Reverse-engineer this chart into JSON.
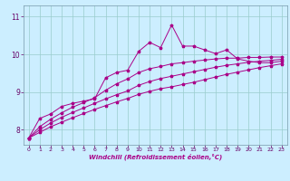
{
  "xlabel": "Windchill (Refroidissement éolien,°C)",
  "background_color": "#cceeff",
  "line_color": "#aa0088",
  "grid_color": "#99cccc",
  "xlim": [
    -0.5,
    23.5
  ],
  "ylim": [
    7.6,
    11.3
  ],
  "yticks": [
    8,
    9,
    10,
    11
  ],
  "xticks": [
    0,
    1,
    2,
    3,
    4,
    5,
    6,
    7,
    8,
    9,
    10,
    11,
    12,
    13,
    14,
    15,
    16,
    17,
    18,
    19,
    20,
    21,
    22,
    23
  ],
  "series": [
    [
      7.78,
      8.3,
      8.42,
      8.62,
      8.7,
      8.76,
      8.82,
      9.38,
      9.52,
      9.58,
      10.08,
      10.32,
      10.18,
      10.78,
      10.22,
      10.22,
      10.12,
      10.02,
      10.12,
      9.88,
      9.82,
      9.78,
      9.78,
      9.82
    ],
    [
      7.78,
      8.08,
      8.28,
      8.45,
      8.6,
      8.72,
      8.85,
      9.05,
      9.22,
      9.35,
      9.52,
      9.62,
      9.68,
      9.75,
      9.78,
      9.82,
      9.85,
      9.88,
      9.9,
      9.9,
      9.92,
      9.92,
      9.93,
      9.93
    ],
    [
      7.78,
      8.0,
      8.18,
      8.33,
      8.46,
      8.58,
      8.7,
      8.82,
      8.93,
      9.03,
      9.18,
      9.28,
      9.36,
      9.42,
      9.48,
      9.54,
      9.6,
      9.66,
      9.71,
      9.75,
      9.79,
      9.82,
      9.84,
      9.87
    ],
    [
      7.78,
      7.93,
      8.08,
      8.2,
      8.32,
      8.43,
      8.54,
      8.64,
      8.74,
      8.83,
      8.94,
      9.02,
      9.09,
      9.14,
      9.2,
      9.26,
      9.33,
      9.4,
      9.47,
      9.53,
      9.59,
      9.65,
      9.7,
      9.75
    ]
  ]
}
